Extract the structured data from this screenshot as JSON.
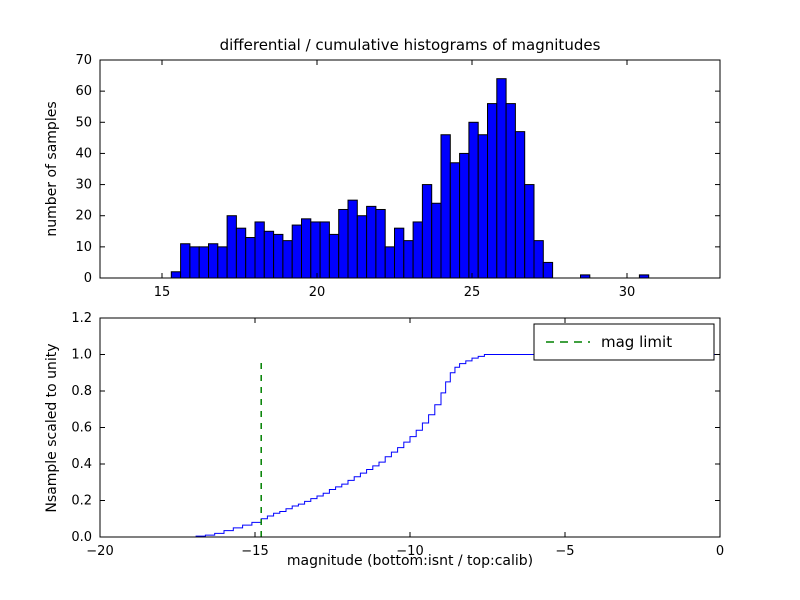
{
  "figure": {
    "title": "differential / cumulative histograms of magnitudes",
    "background": "#ffffff"
  },
  "colors": {
    "bar_fill": "#0000ff",
    "bar_edge": "#000000",
    "curve": "#0000ff",
    "mag_limit": "#008000",
    "axis": "#000000"
  },
  "legend": {
    "label": "mag limit"
  },
  "chart_data": [
    {
      "type": "bar",
      "title": "differential / cumulative histograms of magnitudes",
      "xlabel": "",
      "ylabel": "number of samples",
      "xlim": [
        13,
        33
      ],
      "ylim": [
        0,
        70
      ],
      "xtick_values": [
        15,
        20,
        25,
        30
      ],
      "xtick_labels": [
        "15",
        "20",
        "25",
        "30"
      ],
      "ytick_values": [
        0,
        10,
        20,
        30,
        40,
        50,
        60,
        70
      ],
      "ytick_labels": [
        "0",
        "10",
        "20",
        "30",
        "40",
        "50",
        "60",
        "70"
      ],
      "bin_start": 15.3,
      "bin_width": 0.3,
      "values": [
        2,
        11,
        10,
        10,
        11,
        10,
        20,
        16,
        13,
        18,
        15,
        14,
        12,
        17,
        19,
        18,
        18,
        14,
        22,
        25,
        20,
        23,
        22,
        10,
        16,
        12,
        18,
        30,
        24,
        46,
        37,
        40,
        50,
        46,
        56,
        64,
        56,
        47,
        30,
        12,
        5
      ],
      "extra_bars": [
        {
          "x": 28.5,
          "h": 1
        },
        {
          "x": 30.4,
          "h": 1
        }
      ],
      "bar_color": "#0000ff",
      "edge_color": "#000000",
      "grid": false
    },
    {
      "type": "line",
      "style": "step-cumulative",
      "xlabel": "magnitude (bottom:isnt / top:calib)",
      "ylabel": "Nsample scaled to unity",
      "xlim": [
        -20,
        0
      ],
      "ylim": [
        0,
        1.2
      ],
      "xtick_values": [
        -20,
        -15,
        -10,
        -5,
        0
      ],
      "xtick_labels": [
        "−20",
        "−15",
        "−10",
        "−5",
        "0"
      ],
      "ytick_values": [
        0,
        0.2,
        0.4,
        0.6,
        0.8,
        1.0,
        1.2
      ],
      "ytick_labels": [
        "0.0",
        "0.2",
        "0.4",
        "0.6",
        "0.8",
        "1.0",
        "1.2"
      ],
      "x": [
        -20,
        -16.9,
        -16.6,
        -16.3,
        -16.0,
        -15.7,
        -15.4,
        -15.1,
        -14.8,
        -14.6,
        -14.4,
        -14.2,
        -14.0,
        -13.8,
        -13.6,
        -13.4,
        -13.2,
        -13.0,
        -12.8,
        -12.6,
        -12.4,
        -12.2,
        -12.0,
        -11.8,
        -11.6,
        -11.4,
        -11.2,
        -11.0,
        -10.8,
        -10.6,
        -10.4,
        -10.2,
        -10.0,
        -9.8,
        -9.6,
        -9.4,
        -9.2,
        -9.0,
        -8.85,
        -8.7,
        -8.55,
        -8.4,
        -8.2,
        -8.0,
        -7.8,
        -7.6,
        0
      ],
      "y": [
        0,
        0.005,
        0.01,
        0.02,
        0.035,
        0.05,
        0.065,
        0.08,
        0.1,
        0.115,
        0.13,
        0.14,
        0.155,
        0.17,
        0.18,
        0.195,
        0.21,
        0.225,
        0.24,
        0.26,
        0.275,
        0.29,
        0.31,
        0.33,
        0.35,
        0.37,
        0.39,
        0.41,
        0.44,
        0.465,
        0.49,
        0.52,
        0.55,
        0.585,
        0.625,
        0.67,
        0.725,
        0.79,
        0.85,
        0.9,
        0.93,
        0.95,
        0.965,
        0.98,
        0.99,
        1.0,
        1.0
      ],
      "line_color": "#0000ff",
      "mag_limit": {
        "x": -14.8,
        "y_top": 0.97,
        "color": "#008000",
        "label": "mag limit"
      },
      "legend_position": "upper right",
      "grid": false
    }
  ]
}
